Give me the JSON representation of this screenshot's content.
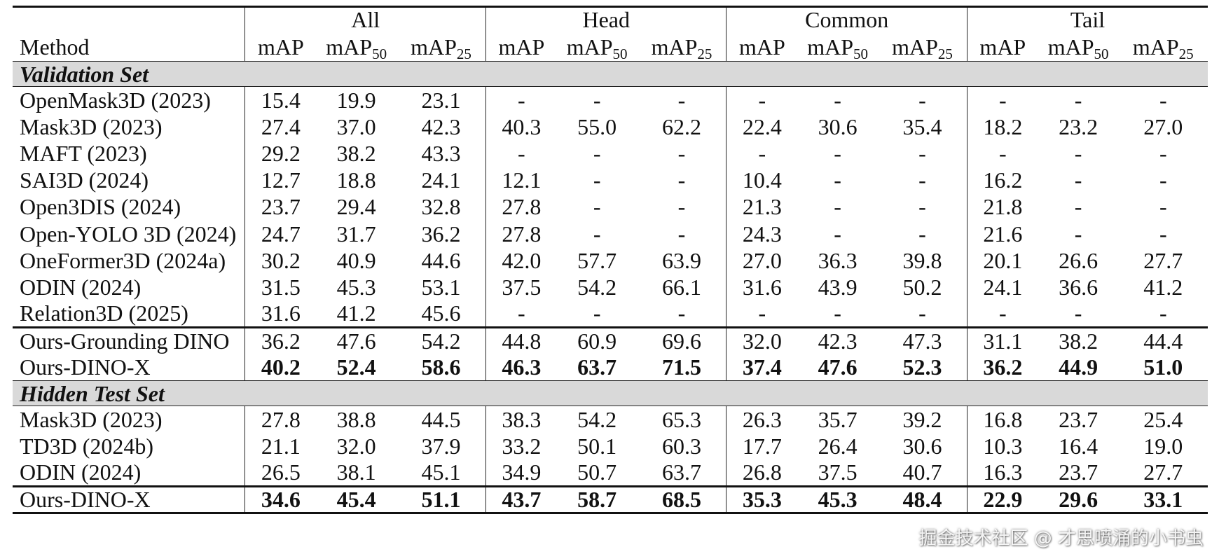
{
  "table": {
    "method_header": "Method",
    "groups": [
      "All",
      "Head",
      "Common",
      "Tail"
    ],
    "metric_labels": [
      {
        "base": "mAP",
        "sub": ""
      },
      {
        "base": "mAP",
        "sub": "50"
      },
      {
        "base": "mAP",
        "sub": "25"
      }
    ],
    "sections": [
      {
        "title": "Validation Set",
        "blocks": [
          [
            {
              "method": "OpenMask3D (2023)",
              "values": [
                "15.4",
                "19.9",
                "23.1",
                "-",
                "-",
                "-",
                "-",
                "-",
                "-",
                "-",
                "-",
                "-"
              ]
            },
            {
              "method": "Mask3D (2023)",
              "values": [
                "27.4",
                "37.0",
                "42.3",
                "40.3",
                "55.0",
                "62.2",
                "22.4",
                "30.6",
                "35.4",
                "18.2",
                "23.2",
                "27.0"
              ]
            },
            {
              "method": "MAFT (2023)",
              "values": [
                "29.2",
                "38.2",
                "43.3",
                "-",
                "-",
                "-",
                "-",
                "-",
                "-",
                "-",
                "-",
                "-"
              ]
            },
            {
              "method": "SAI3D (2024)",
              "values": [
                "12.7",
                "18.8",
                "24.1",
                "12.1",
                "-",
                "-",
                "10.4",
                "-",
                "-",
                "16.2",
                "-",
                "-"
              ]
            },
            {
              "method": "Open3DIS (2024)",
              "values": [
                "23.7",
                "29.4",
                "32.8",
                "27.8",
                "-",
                "-",
                "21.3",
                "-",
                "-",
                "21.8",
                "-",
                "-"
              ]
            },
            {
              "method": "Open-YOLO 3D (2024)",
              "values": [
                "24.7",
                "31.7",
                "36.2",
                "27.8",
                "-",
                "-",
                "24.3",
                "-",
                "-",
                "21.6",
                "-",
                "-"
              ]
            },
            {
              "method": "OneFormer3D (2024a)",
              "values": [
                "30.2",
                "40.9",
                "44.6",
                "42.0",
                "57.7",
                "63.9",
                "27.0",
                "36.3",
                "39.8",
                "20.1",
                "26.6",
                "27.7"
              ]
            },
            {
              "method": "ODIN (2024)",
              "values": [
                "31.5",
                "45.3",
                "53.1",
                "37.5",
                "54.2",
                "66.1",
                "31.6",
                "43.9",
                "50.2",
                "24.1",
                "36.6",
                "41.2"
              ]
            },
            {
              "method": "Relation3D (2025)",
              "values": [
                "31.6",
                "41.2",
                "45.6",
                "-",
                "-",
                "-",
                "-",
                "-",
                "-",
                "-",
                "-",
                "-"
              ]
            }
          ],
          [
            {
              "method": "Ours-Grounding DINO",
              "values": [
                "36.2",
                "47.6",
                "54.2",
                "44.8",
                "60.9",
                "69.6",
                "32.0",
                "42.3",
                "47.3",
                "31.1",
                "38.2",
                "44.4"
              ]
            },
            {
              "method": "Ours-DINO-X",
              "bold": true,
              "values": [
                "40.2",
                "52.4",
                "58.6",
                "46.3",
                "63.7",
                "71.5",
                "37.4",
                "47.6",
                "52.3",
                "36.2",
                "44.9",
                "51.0"
              ]
            }
          ]
        ]
      },
      {
        "title": "Hidden Test Set",
        "blocks": [
          [
            {
              "method": "Mask3D (2023)",
              "values": [
                "27.8",
                "38.8",
                "44.5",
                "38.3",
                "54.2",
                "65.3",
                "26.3",
                "35.7",
                "39.2",
                "16.8",
                "23.7",
                "25.4"
              ]
            },
            {
              "method": "TD3D (2024b)",
              "values": [
                "21.1",
                "32.0",
                "37.9",
                "33.2",
                "50.1",
                "60.3",
                "17.7",
                "26.4",
                "30.6",
                "10.3",
                "16.4",
                "19.0"
              ]
            },
            {
              "method": "ODIN (2024)",
              "values": [
                "26.5",
                "38.1",
                "45.1",
                "34.9",
                "50.7",
                "63.7",
                "26.8",
                "37.5",
                "40.7",
                "16.3",
                "23.7",
                "27.7"
              ]
            }
          ],
          [
            {
              "method": "Ours-DINO-X",
              "bold": true,
              "values": [
                "34.6",
                "45.4",
                "51.1",
                "43.7",
                "58.7",
                "68.5",
                "35.3",
                "45.3",
                "48.4",
                "22.9",
                "29.6",
                "33.1"
              ]
            }
          ]
        ]
      }
    ]
  },
  "watermark": "掘金技术社区 @ 才思喷涌的小书虫"
}
